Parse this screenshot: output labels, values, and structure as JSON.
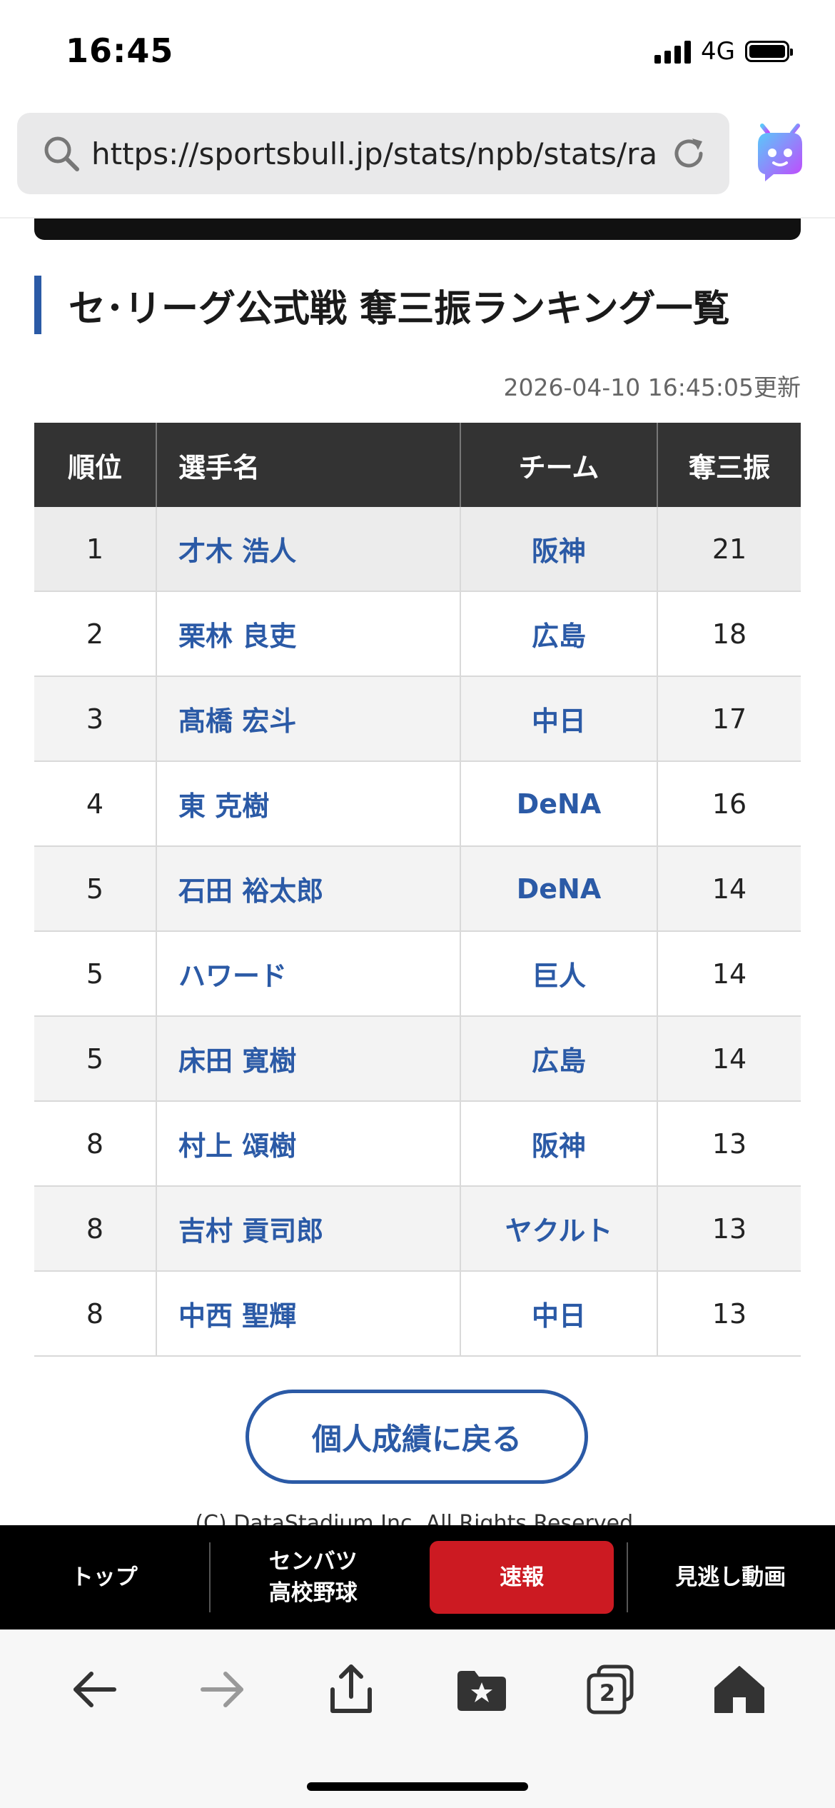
{
  "status": {
    "time": "16:45",
    "network": "4G"
  },
  "browser": {
    "url": "https://sportsbull.jp/stats/npb/stats/ran..."
  },
  "page": {
    "title": "セ･リーグ公式戦 奪三振ランキング一覧",
    "updated": "2026-04-10 16:45:05更新",
    "table": {
      "headers": {
        "rank": "順位",
        "player": "選手名",
        "team": "チーム",
        "strikeouts": "奪三振"
      },
      "rows": [
        {
          "rank": "1",
          "player": "才木 浩人",
          "team": "阪神",
          "strikeouts": "21"
        },
        {
          "rank": "2",
          "player": "栗林 良吏",
          "team": "広島",
          "strikeouts": "18"
        },
        {
          "rank": "3",
          "player": "髙橋 宏斗",
          "team": "中日",
          "strikeouts": "17"
        },
        {
          "rank": "4",
          "player": "東 克樹",
          "team": "DeNA",
          "strikeouts": "16"
        },
        {
          "rank": "5",
          "player": "石田 裕太郎",
          "team": "DeNA",
          "strikeouts": "14"
        },
        {
          "rank": "5",
          "player": "ハワード",
          "team": "巨人",
          "strikeouts": "14"
        },
        {
          "rank": "5",
          "player": "床田 寛樹",
          "team": "広島",
          "strikeouts": "14"
        },
        {
          "rank": "8",
          "player": "村上 頌樹",
          "team": "阪神",
          "strikeouts": "13"
        },
        {
          "rank": "8",
          "player": "吉村 貢司郎",
          "team": "ヤクルト",
          "strikeouts": "13"
        },
        {
          "rank": "8",
          "player": "中西 聖輝",
          "team": "中日",
          "strikeouts": "13"
        }
      ]
    },
    "back_button": "個人成績に戻る",
    "copyright": "(C) DataStadium Inc. All Rights Reserved."
  },
  "site_nav": {
    "items": [
      {
        "label": "トップ"
      },
      {
        "label_line1": "センバツ",
        "label_line2": "高校野球"
      },
      {
        "label": "速報"
      },
      {
        "label": "見逃し動画"
      }
    ]
  },
  "toolbar": {
    "tabs_count": "2"
  },
  "colors": {
    "accent": "#2b5aa6",
    "header_bg": "#333333",
    "active_red": "#cc1a22"
  }
}
